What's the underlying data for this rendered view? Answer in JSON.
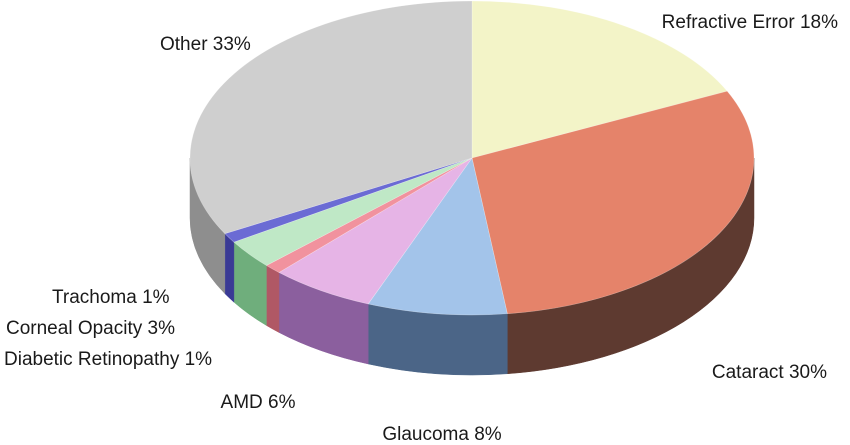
{
  "chart_data": {
    "type": "pie",
    "style": "3d",
    "start": "top",
    "direction": "clockwise",
    "slices": [
      {
        "label": "Refractive Error 18%",
        "name": "Refractive Error",
        "value": 18,
        "color": "#f3f4c8",
        "side": "#b8ba8e"
      },
      {
        "label": "Cataract 30%",
        "name": "Cataract",
        "value": 30,
        "color": "#e5836a",
        "side": "#5e3a30"
      },
      {
        "label": "Glaucoma 8%",
        "name": "Glaucoma",
        "value": 8,
        "color": "#a3c4ea",
        "side": "#4b6587"
      },
      {
        "label": "AMD 6%",
        "name": "AMD",
        "value": 6,
        "color": "#e6b4e6",
        "side": "#8b5f9e"
      },
      {
        "label": "Diabetic Retinopathy 1%",
        "name": "Diabetic Retinopathy",
        "value": 1,
        "color": "#f1929e",
        "side": "#b05865"
      },
      {
        "label": "Corneal Opacity 3%",
        "name": "Corneal Opacity",
        "value": 3,
        "color": "#bfe8c6",
        "side": "#6fae7c"
      },
      {
        "label": "Trachoma 1%",
        "name": "Trachoma",
        "value": 1,
        "color": "#6b6bd4",
        "side": "#3a3a95"
      },
      {
        "label": "Other 33%",
        "name": "Other",
        "value": 33,
        "color": "#cfcfcf",
        "side": "#8e8e8e"
      }
    ]
  }
}
